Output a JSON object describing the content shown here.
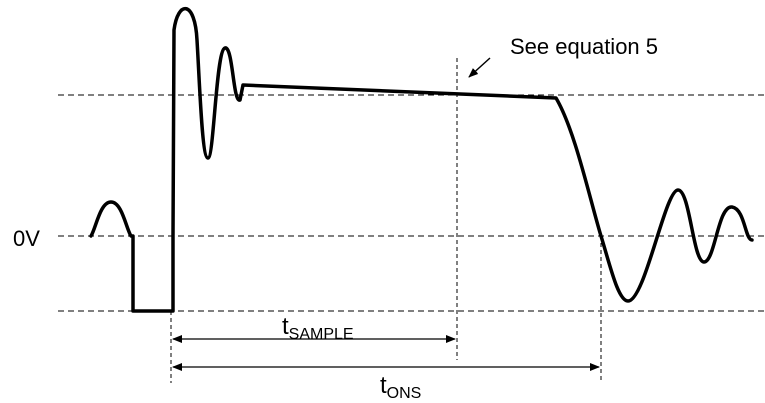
{
  "diagram": {
    "voltage_label": "0V",
    "annotation": "See equation 5",
    "t_sample": {
      "base": "t",
      "sub": "SAMPLE"
    },
    "t_ons": {
      "base": "t",
      "sub": "ONS"
    }
  }
}
